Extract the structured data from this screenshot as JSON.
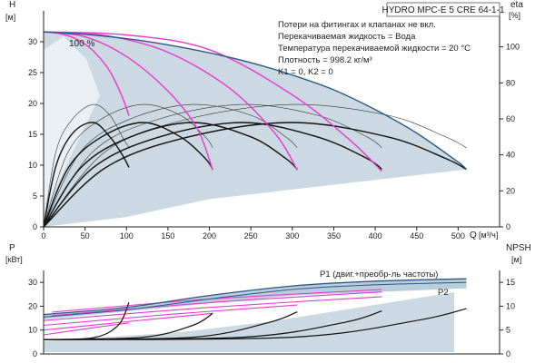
{
  "pump_title": "HYDRO MPC-E 5 CRE 64-1-1",
  "notes": [
    "Потери на фитингах и клапанах не вкл.",
    "Перекачиваемая жидкость = Вода",
    "Температура перекачиваемой жидкости = 20 °C",
    "Плотность = 998.2 кг/м³",
    "K1 = 0, K2 = 0"
  ],
  "colors": {
    "axis": "#222222",
    "envelope_fill": "#ccd9e3",
    "envelope_edge": "#2e5a87",
    "qh_curve": "#e63ad0",
    "eff_curve": "#111111",
    "light_curve": "#333333",
    "power_band": "#b9ccda"
  },
  "chart_data": [
    {
      "type": "line",
      "id": "qh",
      "ylabel": "H",
      "yunit": "[м]",
      "y2label": "eta",
      "y2unit": "[%]",
      "xlabel": "Q",
      "xunit": "[м³/ч]",
      "xlim": [
        0,
        550
      ],
      "ylim": [
        0,
        35
      ],
      "y2lim": [
        0,
        120
      ],
      "x_ticks": [
        0,
        50,
        100,
        150,
        200,
        250,
        300,
        350,
        400,
        450,
        500
      ],
      "y_ticks": [
        0,
        5,
        10,
        15,
        20,
        25,
        30
      ],
      "y2_ticks": [
        0,
        20,
        40,
        60,
        80,
        100
      ],
      "speed_label": "100 %",
      "envelope_upper": [
        [
          0,
          31.6
        ],
        [
          50,
          31.2
        ],
        [
          100,
          30.5
        ],
        [
          150,
          29.5
        ],
        [
          200,
          28.2
        ],
        [
          250,
          26.6
        ],
        [
          300,
          24.6
        ],
        [
          350,
          22.2
        ],
        [
          400,
          19.0
        ],
        [
          450,
          15.2
        ],
        [
          500,
          10.5
        ],
        [
          510,
          9.3
        ]
      ],
      "qh_curves": [
        [
          [
            0,
            31.6
          ],
          [
            20,
            31.3
          ],
          [
            40,
            30.4
          ],
          [
            60,
            28.5
          ],
          [
            80,
            25.2
          ],
          [
            95,
            21.0
          ],
          [
            103,
            18.0
          ]
        ],
        [
          [
            0,
            31.6
          ],
          [
            50,
            30.8
          ],
          [
            100,
            27.6
          ],
          [
            150,
            22.0
          ],
          [
            185,
            16.0
          ],
          [
            204,
            9.2
          ]
        ],
        [
          [
            0,
            31.6
          ],
          [
            75,
            31.0
          ],
          [
            150,
            28.3
          ],
          [
            225,
            22.4
          ],
          [
            280,
            15.0
          ],
          [
            306,
            9.2
          ]
        ],
        [
          [
            0,
            31.6
          ],
          [
            100,
            31.1
          ],
          [
            200,
            28.7
          ],
          [
            300,
            21.4
          ],
          [
            370,
            14.0
          ],
          [
            408,
            9.0
          ]
        ]
      ],
      "eff_curves": [
        [
          [
            0,
            0
          ],
          [
            15,
            34
          ],
          [
            35,
            52
          ],
          [
            60,
            58
          ],
          [
            80,
            50
          ],
          [
            95,
            40
          ],
          [
            103,
            33
          ]
        ],
        [
          [
            0,
            0
          ],
          [
            30,
            33
          ],
          [
            70,
            50
          ],
          [
            120,
            58
          ],
          [
            165,
            50
          ],
          [
            195,
            38
          ],
          [
            204,
            32
          ]
        ],
        [
          [
            0,
            0
          ],
          [
            45,
            33
          ],
          [
            105,
            50
          ],
          [
            180,
            58
          ],
          [
            250,
            50
          ],
          [
            292,
            38
          ],
          [
            306,
            32
          ]
        ],
        [
          [
            0,
            0
          ],
          [
            60,
            33
          ],
          [
            140,
            50
          ],
          [
            240,
            58
          ],
          [
            330,
            50
          ],
          [
            390,
            38
          ],
          [
            408,
            32
          ]
        ],
        [
          [
            0,
            0
          ],
          [
            75,
            33
          ],
          [
            175,
            50
          ],
          [
            300,
            58
          ],
          [
            415,
            50
          ],
          [
            485,
            38
          ],
          [
            510,
            32
          ]
        ]
      ],
      "light_curves": [
        [
          [
            0,
            0
          ],
          [
            15,
            42
          ],
          [
            35,
            60
          ],
          [
            60,
            68
          ],
          [
            80,
            62
          ],
          [
            95,
            50
          ],
          [
            103,
            44
          ]
        ],
        [
          [
            0,
            0
          ],
          [
            30,
            42
          ],
          [
            70,
            60
          ],
          [
            120,
            68
          ],
          [
            165,
            62
          ],
          [
            195,
            50
          ],
          [
            204,
            44
          ]
        ],
        [
          [
            0,
            0
          ],
          [
            45,
            42
          ],
          [
            105,
            60
          ],
          [
            180,
            68
          ],
          [
            250,
            62
          ],
          [
            292,
            50
          ],
          [
            306,
            44
          ]
        ],
        [
          [
            0,
            0
          ],
          [
            60,
            42
          ],
          [
            140,
            60
          ],
          [
            240,
            68
          ],
          [
            330,
            62
          ],
          [
            390,
            50
          ],
          [
            408,
            44
          ]
        ],
        [
          [
            0,
            0
          ],
          [
            75,
            42
          ],
          [
            175,
            60
          ],
          [
            300,
            68
          ],
          [
            415,
            62
          ],
          [
            485,
            50
          ],
          [
            510,
            44
          ]
        ]
      ]
    },
    {
      "type": "line",
      "id": "power",
      "ylabel": "P",
      "yunit": "[кВт]",
      "y2label": "NPSH",
      "y2unit": "[м]",
      "xlim": [
        0,
        550
      ],
      "ylim": [
        0,
        35
      ],
      "y2lim": [
        0,
        17.5
      ],
      "y_ticks": [
        0,
        10,
        20,
        30
      ],
      "y2_ticks": [
        0,
        5,
        10,
        15
      ],
      "p1_label": "P1 (двиг.+преобр-ль частоты)",
      "p2_label": "P2",
      "p1_curve": [
        [
          0,
          16.5
        ],
        [
          100,
          19.5
        ],
        [
          200,
          24.5
        ],
        [
          300,
          28.5
        ],
        [
          400,
          30.5
        ],
        [
          510,
          31.5
        ]
      ],
      "p2_curve": [
        [
          0,
          15.5
        ],
        [
          100,
          18.5
        ],
        [
          200,
          23.0
        ],
        [
          300,
          27.0
        ],
        [
          400,
          29.0
        ],
        [
          510,
          30.0
        ]
      ],
      "power_curves": [
        [
          [
            0,
            8.0
          ],
          [
            50,
            10.5
          ],
          [
            103,
            13.0
          ]
        ],
        [
          [
            0,
            10.0
          ],
          [
            100,
            13.5
          ],
          [
            204,
            17.0
          ]
        ],
        [
          [
            0,
            12.0
          ],
          [
            150,
            16.5
          ],
          [
            306,
            20.5
          ]
        ],
        [
          [
            0,
            14.0
          ],
          [
            200,
            19.5
          ],
          [
            408,
            24.0
          ]
        ],
        [
          [
            10,
            16.0
          ],
          [
            200,
            21.5
          ],
          [
            408,
            26.0
          ]
        ],
        [
          [
            10,
            17.5
          ],
          [
            200,
            23.0
          ],
          [
            408,
            27.0
          ]
        ]
      ],
      "npsh_curves": [
        [
          [
            0,
            3.0
          ],
          [
            60,
            3.4
          ],
          [
            90,
            6.0
          ],
          [
            103,
            10.8
          ]
        ],
        [
          [
            0,
            3.0
          ],
          [
            120,
            3.5
          ],
          [
            180,
            6.0
          ],
          [
            204,
            8.5
          ]
        ],
        [
          [
            0,
            3.0
          ],
          [
            180,
            3.5
          ],
          [
            270,
            6.5
          ],
          [
            306,
            8.8
          ]
        ],
        [
          [
            0,
            3.0
          ],
          [
            240,
            3.5
          ],
          [
            360,
            6.5
          ],
          [
            408,
            9.0
          ]
        ],
        [
          [
            0,
            3.0
          ],
          [
            300,
            3.5
          ],
          [
            450,
            7.0
          ],
          [
            510,
            9.5
          ]
        ]
      ]
    }
  ]
}
